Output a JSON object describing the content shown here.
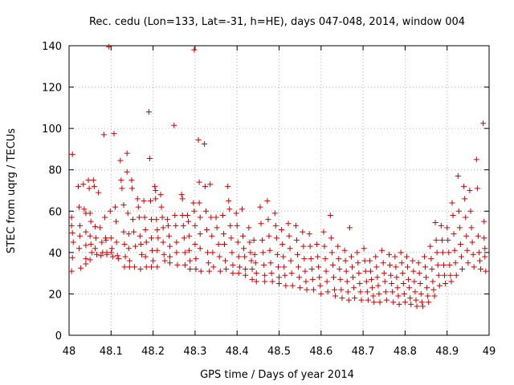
{
  "chart_data": {
    "type": "scatter",
    "title": "Rec. cedu (Lon=133, Lat=-31, h=HE), days 047-048, 2014, window 004",
    "xlabel": "GPS time / Days of year 2014",
    "ylabel": "STEC from uqrg / TECUs",
    "xlim": [
      48,
      49
    ],
    "ylim": [
      0,
      140
    ],
    "xticks": [
      "48",
      "48.1",
      "48.2",
      "48.3",
      "48.4",
      "48.5",
      "48.6",
      "48.7",
      "48.8",
      "48.9",
      "49"
    ],
    "yticks": [
      "0",
      "20",
      "40",
      "60",
      "80",
      "100",
      "120",
      "140"
    ],
    "grid": true,
    "marker": "+",
    "color": "#cc0000",
    "points": [
      [
        48.008,
        87.5
      ],
      [
        48.006,
        57
      ],
      [
        48.006,
        53
      ],
      [
        48.008,
        49.5
      ],
      [
        48.01,
        45
      ],
      [
        48.008,
        37.5
      ],
      [
        48.006,
        31
      ],
      [
        48.022,
        72
      ],
      [
        48.024,
        62
      ],
      [
        48.026,
        53
      ],
      [
        48.026,
        48
      ],
      [
        48.024,
        42
      ],
      [
        48.028,
        32.5
      ],
      [
        48.034,
        73
      ],
      [
        48.036,
        61
      ],
      [
        48.04,
        59
      ],
      [
        48.04,
        50
      ],
      [
        48.04,
        43.5
      ],
      [
        48.04,
        37
      ],
      [
        48.04,
        34.5
      ],
      [
        48.046,
        75
      ],
      [
        48.048,
        71
      ],
      [
        48.05,
        59
      ],
      [
        48.052,
        55
      ],
      [
        48.05,
        48
      ],
      [
        48.052,
        44
      ],
      [
        48.054,
        40
      ],
      [
        48.05,
        36.5
      ],
      [
        48.058,
        75
      ],
      [
        48.06,
        72
      ],
      [
        48.062,
        52.5
      ],
      [
        48.064,
        47
      ],
      [
        48.062,
        42
      ],
      [
        48.066,
        39
      ],
      [
        48.07,
        69
      ],
      [
        48.074,
        52
      ],
      [
        48.078,
        45
      ],
      [
        48.08,
        40
      ],
      [
        48.076,
        38.5
      ],
      [
        48.083,
        97
      ],
      [
        48.085,
        57
      ],
      [
        48.087,
        47
      ],
      [
        48.088,
        46
      ],
      [
        48.09,
        40
      ],
      [
        48.09,
        39
      ],
      [
        48.095,
        139.5
      ],
      [
        48.098,
        60
      ],
      [
        48.1,
        47
      ],
      [
        48.102,
        42
      ],
      [
        48.1,
        40
      ],
      [
        48.104,
        38
      ],
      [
        48.107,
        97.5
      ],
      [
        48.11,
        62
      ],
      [
        48.112,
        55
      ],
      [
        48.113,
        45
      ],
      [
        48.115,
        38.5
      ],
      [
        48.118,
        37
      ],
      [
        48.122,
        84.5
      ],
      [
        48.124,
        75
      ],
      [
        48.126,
        71
      ],
      [
        48.13,
        63
      ],
      [
        48.13,
        50
      ],
      [
        48.132,
        44
      ],
      [
        48.134,
        38
      ],
      [
        48.132,
        33
      ],
      [
        48.138,
        88
      ],
      [
        48.138,
        79
      ],
      [
        48.14,
        59
      ],
      [
        48.142,
        49
      ],
      [
        48.142,
        42
      ],
      [
        48.144,
        36
      ],
      [
        48.144,
        33
      ],
      [
        48.149,
        75
      ],
      [
        48.15,
        71
      ],
      [
        48.152,
        56
      ],
      [
        48.154,
        50
      ],
      [
        48.158,
        43
      ],
      [
        48.156,
        33
      ],
      [
        48.163,
        66
      ],
      [
        48.165,
        62
      ],
      [
        48.167,
        57
      ],
      [
        48.169,
        48
      ],
      [
        48.171,
        44
      ],
      [
        48.173,
        39
      ],
      [
        48.17,
        32
      ],
      [
        48.178,
        65
      ],
      [
        48.18,
        57
      ],
      [
        48.182,
        51
      ],
      [
        48.184,
        45
      ],
      [
        48.182,
        38
      ],
      [
        48.184,
        33
      ],
      [
        48.19,
        108
      ],
      [
        48.192,
        85.5
      ],
      [
        48.194,
        65
      ],
      [
        48.196,
        56
      ],
      [
        48.196,
        47
      ],
      [
        48.198,
        41
      ],
      [
        48.2,
        36
      ],
      [
        48.196,
        33
      ],
      [
        48.204,
        72
      ],
      [
        48.206,
        70
      ],
      [
        48.206,
        66
      ],
      [
        48.208,
        56
      ],
      [
        48.21,
        51
      ],
      [
        48.212,
        47
      ],
      [
        48.21,
        41
      ],
      [
        48.21,
        33
      ],
      [
        48.218,
        68
      ],
      [
        48.22,
        62
      ],
      [
        48.222,
        57
      ],
      [
        48.224,
        52
      ],
      [
        48.224,
        45
      ],
      [
        48.226,
        39
      ],
      [
        48.228,
        36
      ],
      [
        48.234,
        56
      ],
      [
        48.236,
        53
      ],
      [
        48.238,
        48
      ],
      [
        48.24,
        43
      ],
      [
        48.24,
        38
      ],
      [
        48.24,
        35
      ],
      [
        48.25,
        101.5
      ],
      [
        48.252,
        58
      ],
      [
        48.254,
        53
      ],
      [
        48.256,
        45
      ],
      [
        48.256,
        40
      ],
      [
        48.258,
        34
      ],
      [
        48.268,
        68
      ],
      [
        48.27,
        66
      ],
      [
        48.27,
        58
      ],
      [
        48.272,
        53
      ],
      [
        48.274,
        47
      ],
      [
        48.276,
        40
      ],
      [
        48.276,
        34
      ],
      [
        48.282,
        58
      ],
      [
        48.284,
        55
      ],
      [
        48.286,
        48
      ],
      [
        48.286,
        41
      ],
      [
        48.288,
        36
      ],
      [
        48.288,
        32
      ],
      [
        48.298,
        138
      ],
      [
        48.296,
        64
      ],
      [
        48.298,
        60
      ],
      [
        48.3,
        53
      ],
      [
        48.3,
        44
      ],
      [
        48.302,
        37
      ],
      [
        48.302,
        32
      ],
      [
        48.308,
        94.5
      ],
      [
        48.31,
        74
      ],
      [
        48.31,
        64
      ],
      [
        48.312,
        57
      ],
      [
        48.312,
        49
      ],
      [
        48.312,
        42
      ],
      [
        48.314,
        31
      ],
      [
        48.322,
        92.5
      ],
      [
        48.324,
        72
      ],
      [
        48.326,
        60
      ],
      [
        48.328,
        51
      ],
      [
        48.33,
        40
      ],
      [
        48.332,
        35
      ],
      [
        48.334,
        31
      ],
      [
        48.336,
        73
      ],
      [
        48.338,
        57
      ],
      [
        48.34,
        48
      ],
      [
        48.342,
        40
      ],
      [
        48.344,
        33
      ],
      [
        48.35,
        57
      ],
      [
        48.352,
        52
      ],
      [
        48.356,
        44
      ],
      [
        48.358,
        38
      ],
      [
        48.36,
        31
      ],
      [
        48.366,
        58
      ],
      [
        48.368,
        49
      ],
      [
        48.37,
        44
      ],
      [
        48.372,
        36
      ],
      [
        48.374,
        32
      ],
      [
        48.378,
        72
      ],
      [
        48.38,
        65
      ],
      [
        48.382,
        61
      ],
      [
        48.384,
        53
      ],
      [
        48.386,
        47
      ],
      [
        48.388,
        40
      ],
      [
        48.39,
        34
      ],
      [
        48.39,
        30
      ],
      [
        48.398,
        59
      ],
      [
        48.4,
        53
      ],
      [
        48.402,
        45
      ],
      [
        48.404,
        38
      ],
      [
        48.406,
        33
      ],
      [
        48.404,
        30
      ],
      [
        48.412,
        61
      ],
      [
        48.414,
        48
      ],
      [
        48.416,
        42
      ],
      [
        48.418,
        38
      ],
      [
        48.42,
        32
      ],
      [
        48.42,
        29
      ],
      [
        48.428,
        52
      ],
      [
        48.43,
        45
      ],
      [
        48.432,
        40
      ],
      [
        48.434,
        36
      ],
      [
        48.436,
        32
      ],
      [
        48.436,
        27
      ],
      [
        48.44,
        46
      ],
      [
        48.442,
        39
      ],
      [
        48.444,
        35
      ],
      [
        48.446,
        30
      ],
      [
        48.446,
        26
      ],
      [
        48.455,
        62
      ],
      [
        48.457,
        54
      ],
      [
        48.46,
        46
      ],
      [
        48.462,
        40
      ],
      [
        48.464,
        34
      ],
      [
        48.466,
        29
      ],
      [
        48.466,
        26
      ],
      [
        48.472,
        65
      ],
      [
        48.474,
        56
      ],
      [
        48.476,
        48
      ],
      [
        48.478,
        41
      ],
      [
        48.48,
        35
      ],
      [
        48.482,
        30
      ],
      [
        48.484,
        26
      ],
      [
        48.49,
        59
      ],
      [
        48.492,
        53
      ],
      [
        48.494,
        47
      ],
      [
        48.496,
        39
      ],
      [
        48.498,
        33
      ],
      [
        48.5,
        28
      ],
      [
        48.5,
        25
      ],
      [
        48.506,
        51
      ],
      [
        48.508,
        44
      ],
      [
        48.51,
        38
      ],
      [
        48.512,
        33
      ],
      [
        48.514,
        29
      ],
      [
        48.516,
        24
      ],
      [
        48.522,
        54
      ],
      [
        48.524,
        48
      ],
      [
        48.526,
        42
      ],
      [
        48.528,
        36
      ],
      [
        48.53,
        30
      ],
      [
        48.532,
        24
      ],
      [
        48.54,
        53
      ],
      [
        48.542,
        46
      ],
      [
        48.544,
        39
      ],
      [
        48.546,
        33
      ],
      [
        48.548,
        28
      ],
      [
        48.55,
        23
      ],
      [
        48.556,
        50
      ],
      [
        48.558,
        43
      ],
      [
        48.56,
        37
      ],
      [
        48.562,
        31
      ],
      [
        48.564,
        26
      ],
      [
        48.566,
        22
      ],
      [
        48.572,
        49
      ],
      [
        48.574,
        43
      ],
      [
        48.576,
        37
      ],
      [
        48.578,
        32
      ],
      [
        48.58,
        27
      ],
      [
        48.582,
        22
      ],
      [
        48.59,
        44
      ],
      [
        48.592,
        38
      ],
      [
        48.594,
        33
      ],
      [
        48.596,
        28
      ],
      [
        48.598,
        24
      ],
      [
        48.6,
        20
      ],
      [
        48.606,
        50
      ],
      [
        48.608,
        43
      ],
      [
        48.61,
        37
      ],
      [
        48.612,
        31
      ],
      [
        48.614,
        26
      ],
      [
        48.616,
        21
      ],
      [
        48.622,
        58
      ],
      [
        48.624,
        47
      ],
      [
        48.626,
        40
      ],
      [
        48.628,
        34
      ],
      [
        48.63,
        28
      ],
      [
        48.632,
        22
      ],
      [
        48.634,
        19
      ],
      [
        48.64,
        43
      ],
      [
        48.642,
        37
      ],
      [
        48.644,
        32
      ],
      [
        48.646,
        27
      ],
      [
        48.648,
        22
      ],
      [
        48.65,
        18
      ],
      [
        48.656,
        41
      ],
      [
        48.658,
        36
      ],
      [
        48.66,
        31
      ],
      [
        48.662,
        26
      ],
      [
        48.664,
        21
      ],
      [
        48.666,
        17
      ],
      [
        48.668,
        52
      ],
      [
        48.672,
        38
      ],
      [
        48.674,
        33
      ],
      [
        48.676,
        28
      ],
      [
        48.678,
        23
      ],
      [
        48.68,
        18
      ],
      [
        48.686,
        40
      ],
      [
        48.688,
        35
      ],
      [
        48.69,
        30
      ],
      [
        48.692,
        25
      ],
      [
        48.694,
        21
      ],
      [
        48.696,
        17
      ],
      [
        48.702,
        42
      ],
      [
        48.704,
        36
      ],
      [
        48.706,
        31
      ],
      [
        48.708,
        26
      ],
      [
        48.71,
        21
      ],
      [
        48.712,
        17
      ],
      [
        48.716,
        36
      ],
      [
        48.718,
        31
      ],
      [
        48.72,
        27
      ],
      [
        48.722,
        23
      ],
      [
        48.724,
        19
      ],
      [
        48.726,
        16
      ],
      [
        48.73,
        38
      ],
      [
        48.732,
        33
      ],
      [
        48.734,
        28
      ],
      [
        48.736,
        24
      ],
      [
        48.738,
        20
      ],
      [
        48.74,
        16
      ],
      [
        48.745,
        41
      ],
      [
        48.748,
        35
      ],
      [
        48.75,
        30
      ],
      [
        48.752,
        26
      ],
      [
        48.754,
        21
      ],
      [
        48.756,
        17
      ],
      [
        48.762,
        39
      ],
      [
        48.764,
        34
      ],
      [
        48.766,
        29
      ],
      [
        48.768,
        25
      ],
      [
        48.77,
        21
      ],
      [
        48.772,
        16
      ],
      [
        48.776,
        38
      ],
      [
        48.778,
        33
      ],
      [
        48.78,
        28
      ],
      [
        48.782,
        23
      ],
      [
        48.784,
        19
      ],
      [
        48.786,
        15
      ],
      [
        48.79,
        40
      ],
      [
        48.792,
        35
      ],
      [
        48.794,
        30
      ],
      [
        48.796,
        25
      ],
      [
        48.798,
        20
      ],
      [
        48.8,
        16
      ],
      [
        48.804,
        38
      ],
      [
        48.806,
        33
      ],
      [
        48.808,
        27
      ],
      [
        48.81,
        23
      ],
      [
        48.812,
        18
      ],
      [
        48.814,
        15
      ],
      [
        48.818,
        36
      ],
      [
        48.82,
        31
      ],
      [
        48.822,
        26
      ],
      [
        48.824,
        21
      ],
      [
        48.826,
        17
      ],
      [
        48.828,
        14
      ],
      [
        48.832,
        35
      ],
      [
        48.834,
        30
      ],
      [
        48.836,
        25
      ],
      [
        48.838,
        20
      ],
      [
        48.84,
        16
      ],
      [
        48.842,
        14
      ],
      [
        48.846,
        38
      ],
      [
        48.848,
        33
      ],
      [
        48.85,
        28
      ],
      [
        48.852,
        23
      ],
      [
        48.854,
        19
      ],
      [
        48.856,
        16
      ],
      [
        48.86,
        43
      ],
      [
        48.862,
        37
      ],
      [
        48.864,
        32
      ],
      [
        48.866,
        26
      ],
      [
        48.868,
        22
      ],
      [
        48.87,
        19
      ],
      [
        48.872,
        54.5
      ],
      [
        48.874,
        46
      ],
      [
        48.876,
        40
      ],
      [
        48.878,
        34
      ],
      [
        48.88,
        29
      ],
      [
        48.882,
        24
      ],
      [
        48.886,
        53
      ],
      [
        48.888,
        46
      ],
      [
        48.89,
        40
      ],
      [
        48.892,
        34
      ],
      [
        48.894,
        29
      ],
      [
        48.896,
        25
      ],
      [
        48.9,
        52
      ],
      [
        48.902,
        46
      ],
      [
        48.904,
        40
      ],
      [
        48.906,
        34
      ],
      [
        48.908,
        29
      ],
      [
        48.91,
        26
      ],
      [
        48.912,
        64
      ],
      [
        48.914,
        58
      ],
      [
        48.916,
        49
      ],
      [
        48.918,
        41
      ],
      [
        48.92,
        35
      ],
      [
        48.922,
        29
      ],
      [
        48.926,
        77
      ],
      [
        48.928,
        60
      ],
      [
        48.93,
        52
      ],
      [
        48.932,
        44
      ],
      [
        48.934,
        38
      ],
      [
        48.936,
        32
      ],
      [
        48.94,
        72
      ],
      [
        48.942,
        66
      ],
      [
        48.944,
        57
      ],
      [
        48.946,
        48
      ],
      [
        48.948,
        41
      ],
      [
        48.95,
        35
      ],
      [
        48.954,
        70
      ],
      [
        48.956,
        60
      ],
      [
        48.958,
        52
      ],
      [
        48.96,
        45
      ],
      [
        48.962,
        39
      ],
      [
        48.964,
        33
      ],
      [
        48.97,
        85
      ],
      [
        48.972,
        71
      ],
      [
        48.974,
        48
      ],
      [
        48.976,
        40
      ],
      [
        48.978,
        36
      ],
      [
        48.98,
        32
      ],
      [
        48.986,
        102.5
      ],
      [
        48.988,
        55
      ],
      [
        48.988,
        47
      ],
      [
        48.99,
        42
      ],
      [
        48.99,
        38
      ],
      [
        48.992,
        31
      ]
    ]
  }
}
